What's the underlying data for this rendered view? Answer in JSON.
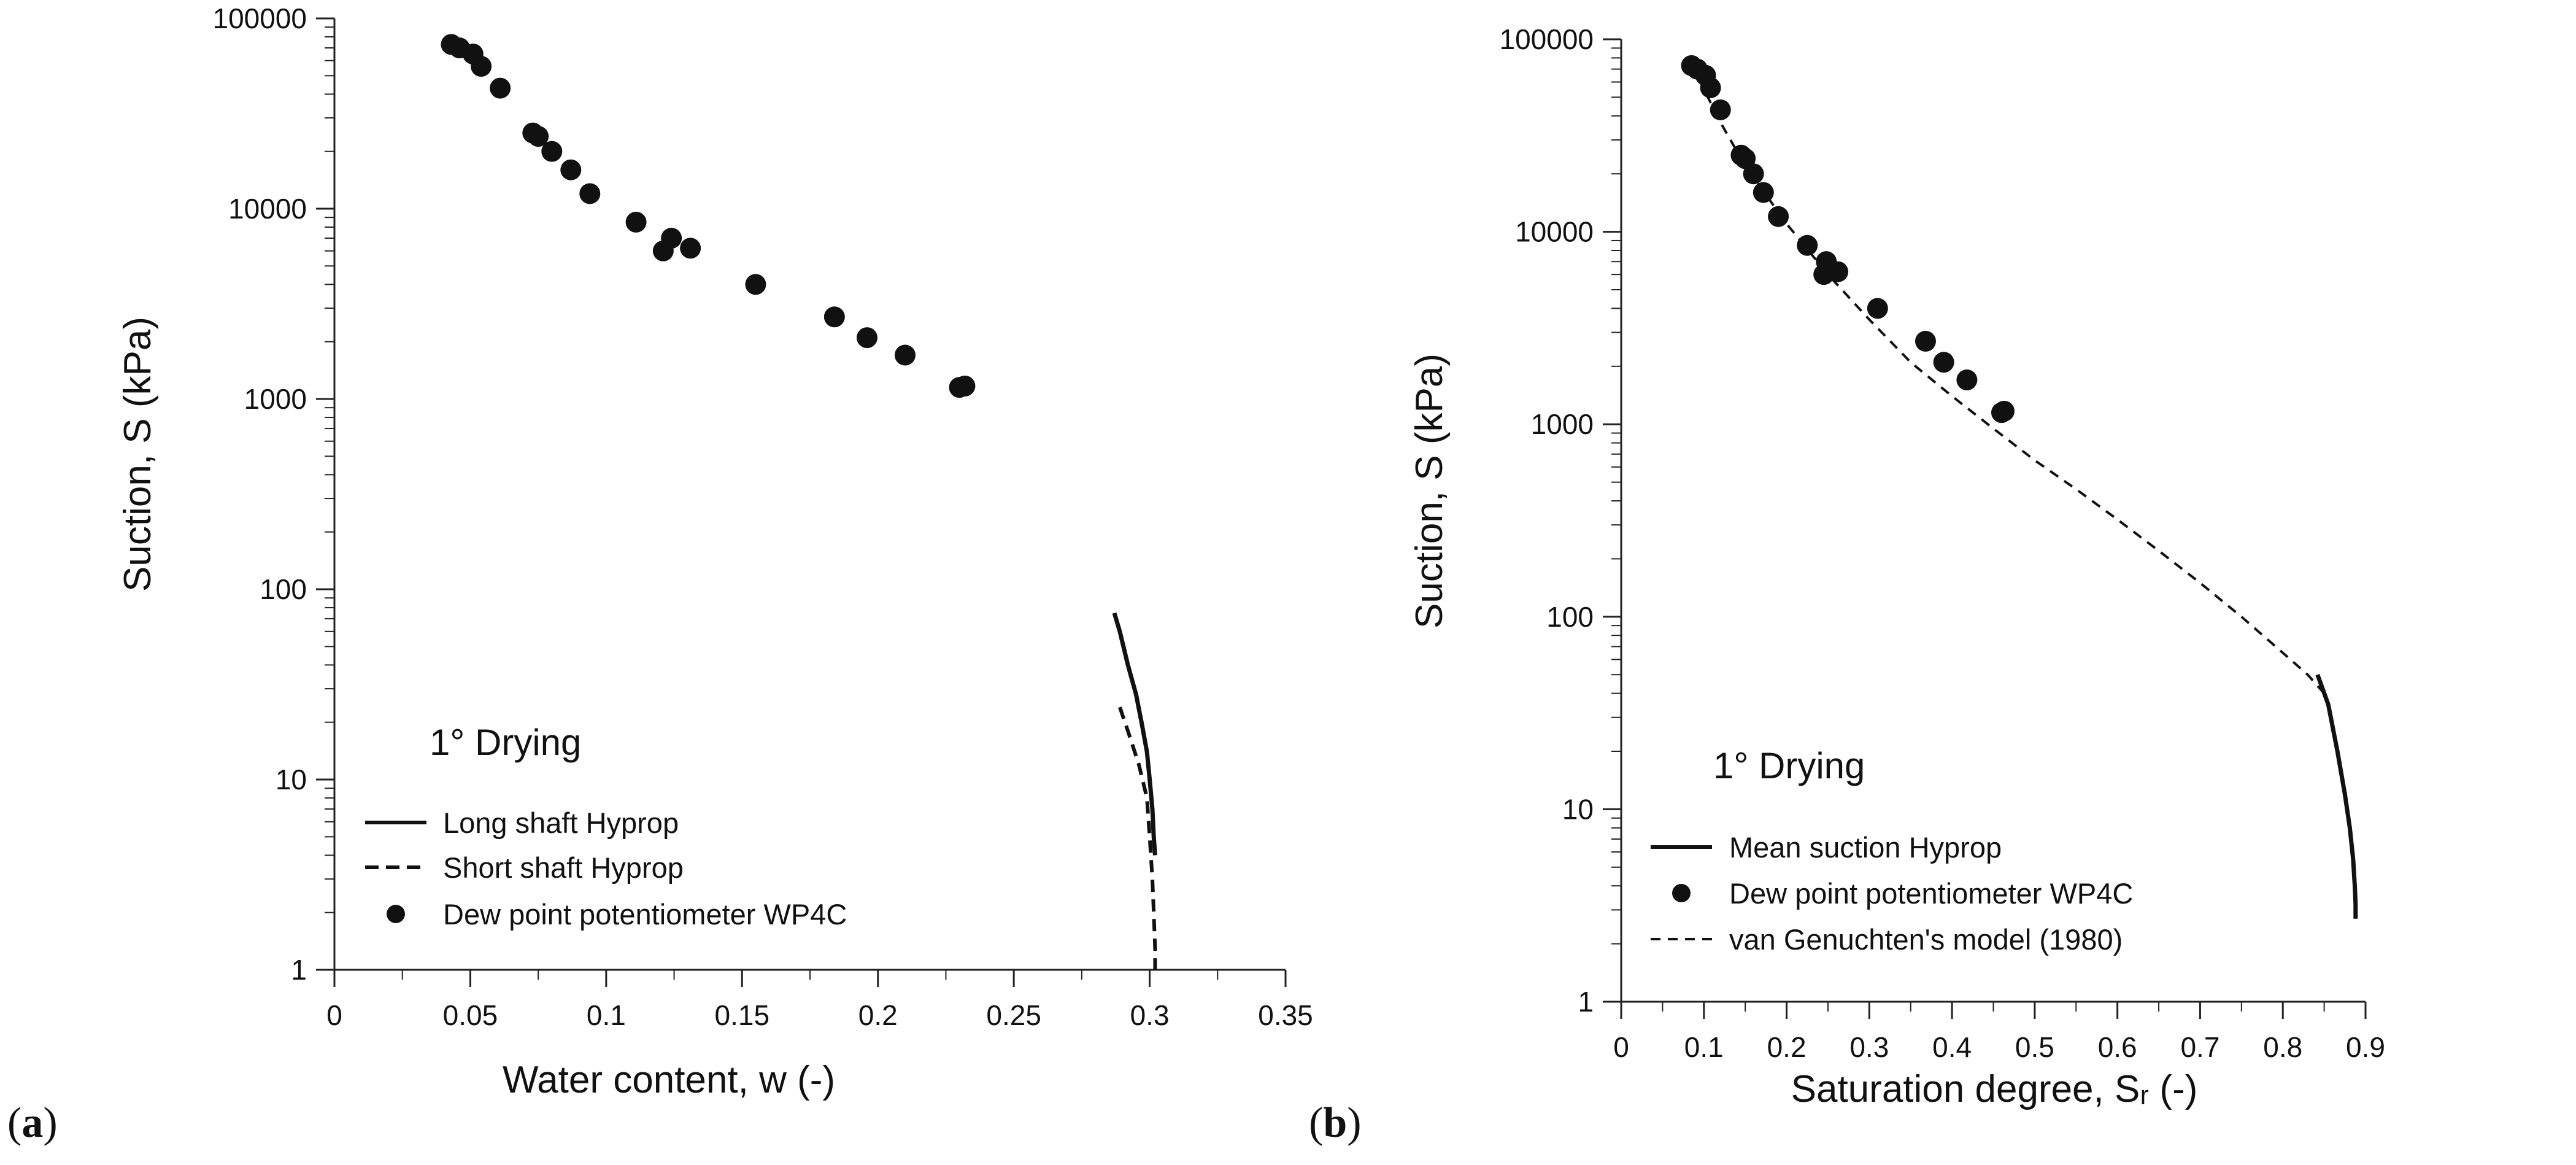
{
  "chart_data": [
    {
      "panel": "(a)",
      "panel_letter": "a",
      "type": "scatter",
      "xlabel": "Water content, w (-)",
      "ylabel": "Suction, S (kPa)",
      "xlim": [
        0,
        0.35
      ],
      "ylim": [
        1,
        100000
      ],
      "yscale": "log",
      "xticks": [
        "0",
        "0.05",
        "0.1",
        "0.15",
        "0.2",
        "0.25",
        "0.3",
        "0.35"
      ],
      "yticks": [
        "1",
        "10",
        "100",
        "1000",
        "10000",
        "100000"
      ],
      "annotation": "1° Drying",
      "legend": [
        "Long shaft Hyprop",
        "Short shaft Hyprop",
        "Dew point potentiometer WP4C"
      ],
      "series": [
        {
          "name": "Long shaft Hyprop",
          "style": "solid",
          "x": [
            0.287,
            0.289,
            0.292,
            0.295,
            0.297,
            0.299,
            0.3,
            0.301,
            0.3015,
            0.302
          ],
          "y": [
            75,
            60,
            40,
            28,
            20,
            14,
            10,
            7,
            5,
            4
          ]
        },
        {
          "name": "Short shaft Hyprop",
          "style": "dashed",
          "x": [
            0.289,
            0.292,
            0.296,
            0.299,
            0.3,
            0.301,
            0.3015,
            0.302,
            0.302
          ],
          "y": [
            24,
            18,
            12,
            8,
            5,
            3,
            2,
            1.3,
            1
          ]
        },
        {
          "name": "Dew point potentiometer WP4C",
          "style": "marker",
          "x": [
            0.043,
            0.046,
            0.051,
            0.054,
            0.061,
            0.073,
            0.075,
            0.08,
            0.087,
            0.094,
            0.111,
            0.121,
            0.124,
            0.131,
            0.155,
            0.184,
            0.196,
            0.21,
            0.23,
            0.232
          ],
          "y": [
            73000,
            70000,
            65000,
            56000,
            43000,
            25000,
            24000,
            20000,
            16000,
            12000,
            8500,
            6000,
            7000,
            6200,
            4000,
            2700,
            2100,
            1700,
            1150,
            1170
          ]
        }
      ]
    },
    {
      "panel": "(b)",
      "panel_letter": "b",
      "type": "scatter",
      "xlabel": "Saturation degree, Sᵣ (-)",
      "ylabel": "Suction, S (kPa)",
      "xlim": [
        0,
        0.9
      ],
      "ylim": [
        1,
        100000
      ],
      "yscale": "log",
      "xticks": [
        "0",
        "0.1",
        "0.2",
        "0.3",
        "0.4",
        "0.5",
        "0.6",
        "0.7",
        "0.8",
        "0.9"
      ],
      "yticks": [
        "1",
        "10",
        "100",
        "1000",
        "10000",
        "100000"
      ],
      "annotation": "1° Drying",
      "legend": [
        "Mean suction Hyprop",
        "Dew point potentiometer WP4C",
        "van Genuchten's model (1980)"
      ],
      "series": [
        {
          "name": "Mean suction Hyprop",
          "style": "solid",
          "x": [
            0.842,
            0.855,
            0.866,
            0.875,
            0.881,
            0.885,
            0.887,
            0.888,
            0.888
          ],
          "y": [
            50,
            35,
            20,
            12,
            8,
            5.5,
            4,
            3.2,
            2.7
          ]
        },
        {
          "name": "Dew point potentiometer WP4C",
          "style": "marker",
          "x": [
            0.085,
            0.092,
            0.102,
            0.108,
            0.12,
            0.145,
            0.15,
            0.16,
            0.172,
            0.19,
            0.225,
            0.245,
            0.248,
            0.262,
            0.31,
            0.368,
            0.39,
            0.418,
            0.46,
            0.463
          ],
          "y": [
            73000,
            70000,
            65000,
            56000,
            43000,
            25000,
            24000,
            20000,
            16000,
            12000,
            8500,
            6000,
            7000,
            6200,
            4000,
            2700,
            2100,
            1700,
            1150,
            1170
          ]
        },
        {
          "name": "van Genuchten's model (1980)",
          "style": "dashed",
          "x": [
            0.085,
            0.1,
            0.12,
            0.15,
            0.2,
            0.25,
            0.3,
            0.35,
            0.4,
            0.45,
            0.5,
            0.55,
            0.6,
            0.65,
            0.7,
            0.75,
            0.8,
            0.83,
            0.85
          ],
          "y": [
            75000,
            55000,
            37000,
            22000,
            11000,
            6000,
            3500,
            2100,
            1400,
            950,
            650,
            460,
            320,
            220,
            150,
            100,
            65,
            50,
            40
          ]
        }
      ]
    }
  ]
}
